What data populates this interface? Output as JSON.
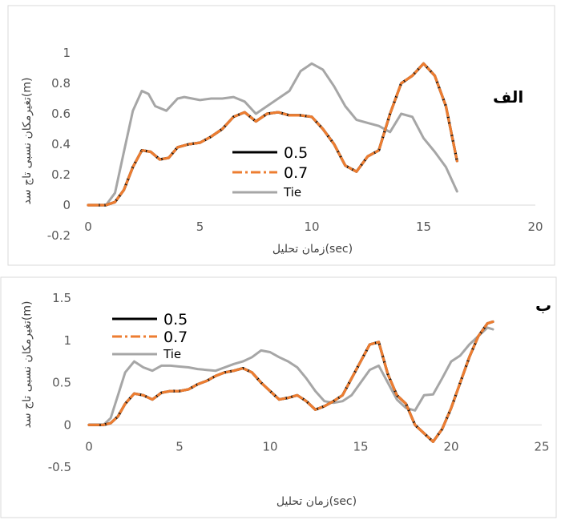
{
  "chart_data": [
    {
      "type": "line",
      "panel_label": "الف",
      "xlabel": "زمان تحلیل(sec)",
      "ylabel": "تغیرمکان نسبی تاج سد(m)",
      "xlim": [
        0,
        20
      ],
      "ylim": [
        -0.2,
        1
      ],
      "xticks": [
        "0",
        "5",
        "10",
        "15",
        "20"
      ],
      "yticks": [
        "-0.2",
        "0",
        "0.2",
        "0.4",
        "0.6",
        "0.8",
        "1"
      ],
      "legend_position": "center-left",
      "grid": false,
      "series": [
        {
          "name": "Tie",
          "color": "#a6a6a6",
          "dash": "solid",
          "x": [
            0,
            0.8,
            1.2,
            1.6,
            2.0,
            2.4,
            2.7,
            3.0,
            3.5,
            4.0,
            4.3,
            5.0,
            5.5,
            6.0,
            6.5,
            7.0,
            7.5,
            8.0,
            8.5,
            9.0,
            9.5,
            10.0,
            10.5,
            11.0,
            11.5,
            12.0,
            12.5,
            13.0,
            13.5,
            14.0,
            14.5,
            15.0,
            15.5,
            16.0,
            16.5
          ],
          "y": [
            0,
            0,
            0.08,
            0.35,
            0.62,
            0.75,
            0.73,
            0.65,
            0.62,
            0.7,
            0.71,
            0.69,
            0.7,
            0.7,
            0.71,
            0.68,
            0.6,
            0.65,
            0.7,
            0.75,
            0.88,
            0.93,
            0.89,
            0.78,
            0.65,
            0.56,
            0.54,
            0.52,
            0.48,
            0.6,
            0.58,
            0.44,
            0.35,
            0.25,
            0.09
          ]
        },
        {
          "name": "0.5",
          "color": "#000000",
          "dash": "solid",
          "x": [
            0,
            0.8,
            1.2,
            1.6,
            2.0,
            2.4,
            2.8,
            3.2,
            3.6,
            4.0,
            4.5,
            5.0,
            5.5,
            6.0,
            6.5,
            7.0,
            7.5,
            8.0,
            8.5,
            9.0,
            9.5,
            10.0,
            10.5,
            11.0,
            11.5,
            12.0,
            12.5,
            13.0,
            13.5,
            14.0,
            14.5,
            15.0,
            15.5,
            16.0,
            16.5
          ],
          "y": [
            0,
            0,
            0.02,
            0.1,
            0.25,
            0.36,
            0.35,
            0.3,
            0.31,
            0.38,
            0.4,
            0.41,
            0.45,
            0.5,
            0.58,
            0.61,
            0.55,
            0.6,
            0.61,
            0.59,
            0.59,
            0.58,
            0.5,
            0.4,
            0.26,
            0.22,
            0.32,
            0.36,
            0.6,
            0.8,
            0.85,
            0.93,
            0.85,
            0.65,
            0.29
          ]
        },
        {
          "name": "0.7",
          "color": "#ed7d31",
          "dash": "dashdot",
          "x": [
            0,
            0.8,
            1.2,
            1.6,
            2.0,
            2.4,
            2.8,
            3.2,
            3.6,
            4.0,
            4.5,
            5.0,
            5.5,
            6.0,
            6.5,
            7.0,
            7.5,
            8.0,
            8.5,
            9.0,
            9.5,
            10.0,
            10.5,
            11.0,
            11.5,
            12.0,
            12.5,
            13.0,
            13.5,
            14.0,
            14.5,
            15.0,
            15.5,
            16.0,
            16.5
          ],
          "y": [
            0,
            0,
            0.02,
            0.1,
            0.25,
            0.36,
            0.35,
            0.3,
            0.31,
            0.38,
            0.4,
            0.41,
            0.45,
            0.5,
            0.58,
            0.61,
            0.55,
            0.6,
            0.61,
            0.59,
            0.59,
            0.58,
            0.5,
            0.4,
            0.26,
            0.22,
            0.32,
            0.36,
            0.6,
            0.8,
            0.85,
            0.93,
            0.85,
            0.65,
            0.29
          ]
        }
      ]
    },
    {
      "type": "line",
      "panel_label": "ب",
      "xlabel": "زمان تحلیل(sec)",
      "ylabel": "تغیرمکان نسبی تاج سد(m)",
      "xlim": [
        0,
        25
      ],
      "ylim": [
        -0.5,
        1.5
      ],
      "xticks": [
        "0",
        "5",
        "10",
        "15",
        "20",
        "25"
      ],
      "yticks": [
        "-0.5",
        "0",
        "0.5",
        "1",
        "1.5"
      ],
      "legend_position": "top-left",
      "grid": false,
      "series": [
        {
          "name": "Tie",
          "color": "#a6a6a6",
          "dash": "solid",
          "x": [
            0,
            0.8,
            1.2,
            1.6,
            2.0,
            2.5,
            3.0,
            3.5,
            4.0,
            4.5,
            5.0,
            5.5,
            6.0,
            6.5,
            7.0,
            7.5,
            8.0,
            8.5,
            9.0,
            9.5,
            10.0,
            10.5,
            11.0,
            11.5,
            12.0,
            12.5,
            13.0,
            13.5,
            14.0,
            14.5,
            15.0,
            15.5,
            16.0,
            16.5,
            17.0,
            17.5,
            18.0,
            18.5,
            19.0,
            19.5,
            20.0,
            20.5,
            21.0,
            21.5,
            22.0,
            22.3
          ],
          "y": [
            0,
            0,
            0.08,
            0.35,
            0.62,
            0.75,
            0.68,
            0.64,
            0.7,
            0.7,
            0.69,
            0.68,
            0.66,
            0.65,
            0.64,
            0.68,
            0.72,
            0.75,
            0.8,
            0.88,
            0.86,
            0.8,
            0.75,
            0.68,
            0.55,
            0.4,
            0.28,
            0.26,
            0.28,
            0.35,
            0.5,
            0.65,
            0.7,
            0.5,
            0.3,
            0.2,
            0.17,
            0.35,
            0.36,
            0.55,
            0.75,
            0.82,
            0.95,
            1.05,
            1.15,
            1.13
          ]
        },
        {
          "name": "0.5",
          "color": "#000000",
          "dash": "solid",
          "x": [
            0,
            0.8,
            1.2,
            1.6,
            2.0,
            2.5,
            3.0,
            3.5,
            4.0,
            4.5,
            5.0,
            5.5,
            6.0,
            6.5,
            7.0,
            7.5,
            8.0,
            8.5,
            9.0,
            9.5,
            10.0,
            10.5,
            11.0,
            11.5,
            12.0,
            12.5,
            13.0,
            13.5,
            14.0,
            14.5,
            15.0,
            15.5,
            16.0,
            16.5,
            17.0,
            17.5,
            18.0,
            18.5,
            19.0,
            19.5,
            20.0,
            20.5,
            21.0,
            21.5,
            22.0,
            22.3
          ],
          "y": [
            0,
            0,
            0.02,
            0.1,
            0.25,
            0.37,
            0.35,
            0.3,
            0.38,
            0.4,
            0.4,
            0.42,
            0.48,
            0.52,
            0.58,
            0.62,
            0.64,
            0.67,
            0.62,
            0.5,
            0.4,
            0.3,
            0.32,
            0.35,
            0.28,
            0.18,
            0.22,
            0.28,
            0.35,
            0.55,
            0.75,
            0.95,
            0.98,
            0.6,
            0.35,
            0.25,
            0.0,
            -0.1,
            -0.2,
            -0.05,
            0.2,
            0.5,
            0.8,
            1.05,
            1.2,
            1.22
          ]
        },
        {
          "name": "0.7",
          "color": "#ed7d31",
          "dash": "dashdot",
          "x": [
            0,
            0.8,
            1.2,
            1.6,
            2.0,
            2.5,
            3.0,
            3.5,
            4.0,
            4.5,
            5.0,
            5.5,
            6.0,
            6.5,
            7.0,
            7.5,
            8.0,
            8.5,
            9.0,
            9.5,
            10.0,
            10.5,
            11.0,
            11.5,
            12.0,
            12.5,
            13.0,
            13.5,
            14.0,
            14.5,
            15.0,
            15.5,
            16.0,
            16.5,
            17.0,
            17.5,
            18.0,
            18.5,
            19.0,
            19.5,
            20.0,
            20.5,
            21.0,
            21.5,
            22.0,
            22.3
          ],
          "y": [
            0,
            0,
            0.02,
            0.1,
            0.25,
            0.37,
            0.35,
            0.3,
            0.38,
            0.4,
            0.4,
            0.42,
            0.48,
            0.52,
            0.58,
            0.62,
            0.64,
            0.67,
            0.62,
            0.5,
            0.4,
            0.3,
            0.32,
            0.35,
            0.28,
            0.18,
            0.22,
            0.28,
            0.35,
            0.55,
            0.75,
            0.95,
            0.98,
            0.6,
            0.35,
            0.25,
            0.0,
            -0.1,
            -0.2,
            -0.05,
            0.2,
            0.5,
            0.8,
            1.05,
            1.2,
            1.22
          ]
        }
      ]
    }
  ]
}
